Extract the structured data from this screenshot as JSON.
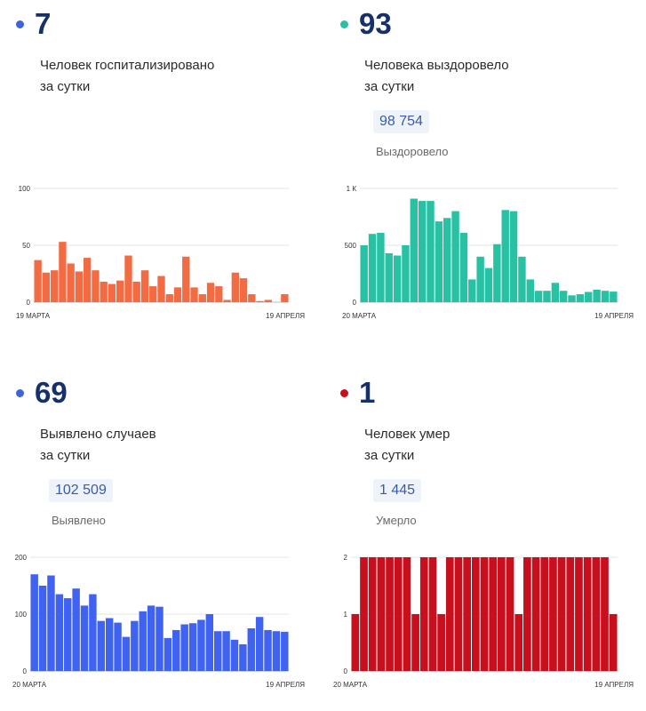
{
  "panels": [
    {
      "value": "7",
      "label_line1": "Человек госпитализировано",
      "label_line2": "за сутки",
      "total": "",
      "total_label": ""
    },
    {
      "value": "93",
      "label_line1": "Человека выздоровело",
      "label_line2": "за сутки",
      "total": "98 754",
      "total_label": "Выздоровело"
    },
    {
      "value": "69",
      "label_line1": "Выявлено случаев",
      "label_line2": "за сутки",
      "total": "102 509",
      "total_label": "Выявлено"
    },
    {
      "value": "1",
      "label_line1": "Человек умер",
      "label_line2": "за сутки",
      "total": "1 445",
      "total_label": "Умерло"
    }
  ],
  "chart_data": [
    {
      "type": "bar",
      "color": "#f26b43",
      "dot_color": "#3f63d8",
      "y_ticks": [
        "0",
        "50",
        "100"
      ],
      "ylim": [
        0,
        100
      ],
      "x_start_label": "19 МАРТА",
      "x_end_label": "19 АПРЕЛЯ",
      "grid": true,
      "values": [
        37,
        26,
        28,
        53,
        34,
        27,
        39,
        28,
        18,
        16,
        19,
        41,
        18,
        28,
        14,
        23,
        7,
        13,
        40,
        13,
        7,
        17,
        14,
        2,
        26,
        21,
        7,
        1,
        2,
        0,
        7
      ]
    },
    {
      "type": "bar",
      "color": "#28c1a4",
      "dot_color": "#28c1a4",
      "y_ticks": [
        "0",
        "500",
        "1 К"
      ],
      "ylim": [
        0,
        1000
      ],
      "x_start_label": "20 МАРТА",
      "x_end_label": "19 АПРЕЛЯ",
      "grid": true,
      "values": [
        500,
        600,
        610,
        430,
        410,
        500,
        910,
        890,
        890,
        710,
        740,
        800,
        610,
        200,
        400,
        300,
        510,
        810,
        800,
        400,
        200,
        100,
        100,
        170,
        100,
        60,
        70,
        90,
        110,
        100,
        93
      ]
    },
    {
      "type": "bar",
      "color": "#3f63f0",
      "dot_color": "#3f63d8",
      "y_ticks": [
        "0",
        "100",
        "200"
      ],
      "ylim": [
        0,
        200
      ],
      "x_start_label": "20 МАРТА",
      "x_end_label": "19 АПРЕЛЯ",
      "grid": true,
      "values": [
        170,
        150,
        168,
        135,
        128,
        145,
        115,
        135,
        88,
        93,
        85,
        60,
        88,
        105,
        115,
        113,
        58,
        72,
        82,
        84,
        90,
        100,
        70,
        70,
        55,
        47,
        75,
        95,
        72,
        70,
        69
      ]
    },
    {
      "type": "bar",
      "color": "#c80f1e",
      "dot_color": "#c80f1e",
      "y_ticks": [
        "0",
        "1",
        "2"
      ],
      "ylim": [
        0,
        2
      ],
      "x_start_label": "20 МАРТА",
      "x_end_label": "19 АПРЕЛЯ",
      "grid": true,
      "values": [
        1,
        2,
        2,
        2,
        2,
        2,
        2,
        1,
        2,
        2,
        1,
        2,
        2,
        2,
        2,
        2,
        2,
        2,
        2,
        1,
        2,
        2,
        2,
        2,
        2,
        2,
        2,
        2,
        2,
        2,
        1
      ]
    }
  ]
}
